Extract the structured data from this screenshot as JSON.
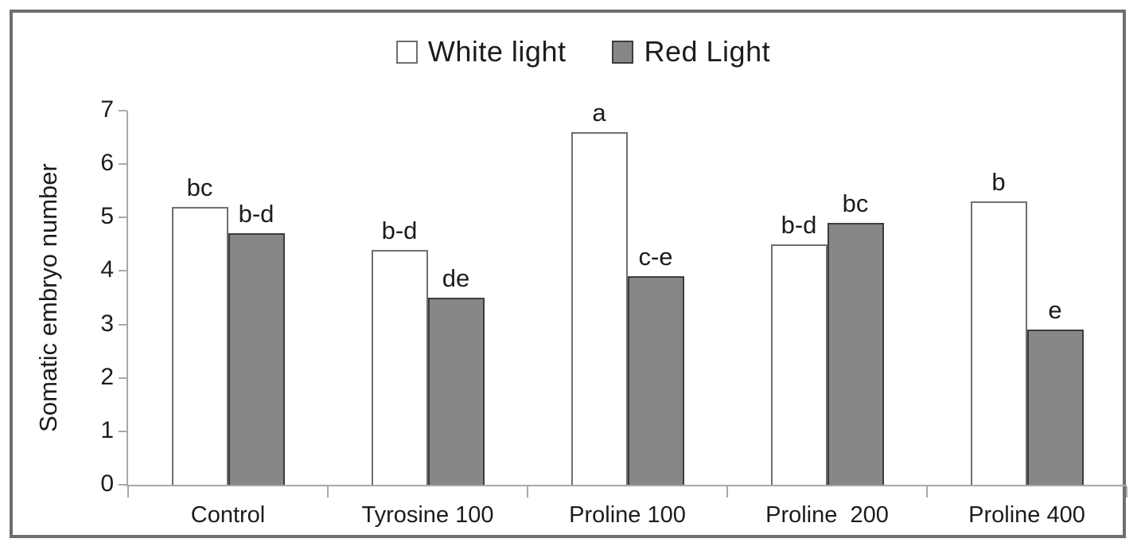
{
  "figure": {
    "background": "#ffffff",
    "frame_border_color": "#6e6e6e"
  },
  "chart_data": {
    "type": "bar",
    "title": "",
    "categories": [
      "Control",
      "Tyrosine 100",
      "Proline 100",
      "Proline  200",
      "Proline 400"
    ],
    "series": [
      {
        "name": "White light",
        "fill": "#ffffff",
        "border": "#6f6f6f",
        "values": [
          5.2,
          4.4,
          6.6,
          4.5,
          5.3
        ],
        "point_labels": [
          "bc",
          "b-d",
          "a",
          "b-d",
          "b"
        ]
      },
      {
        "name": "Red Light",
        "fill": "#878787",
        "border": "#3d3d3d",
        "values": [
          4.7,
          3.5,
          3.9,
          4.9,
          2.9
        ],
        "point_labels": [
          "b-d",
          "de",
          "c-e",
          "bc",
          "e"
        ]
      }
    ],
    "xlabel": "",
    "ylabel": "Somatic embryo number",
    "ylim": [
      0,
      7
    ],
    "yticks": [
      0,
      1,
      2,
      3,
      4,
      5,
      6,
      7
    ],
    "grid": false,
    "legend_position": "top-center",
    "axis_color": "#a8a8a8",
    "text_color": "#1c1c1c"
  }
}
